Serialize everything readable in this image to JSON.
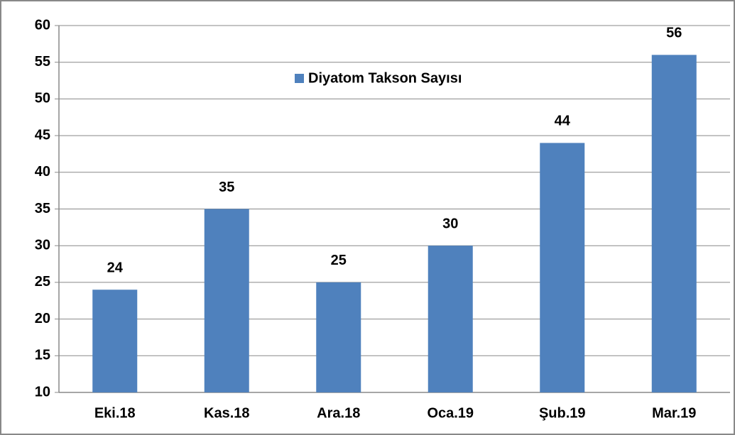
{
  "chart_data": {
    "type": "bar",
    "series_name": "Diyatom Takson Sayısı",
    "categories": [
      "Eki.18",
      "Kas.18",
      "Ara.18",
      "Oca.19",
      "Şub.19",
      "Mar.19"
    ],
    "values": [
      24,
      35,
      25,
      30,
      44,
      56
    ],
    "color": "#4f81bd",
    "ylim": [
      10,
      60
    ],
    "yticks": [
      10,
      15,
      20,
      25,
      30,
      35,
      40,
      45,
      50,
      55,
      60
    ],
    "grid": true,
    "legend": "top"
  }
}
